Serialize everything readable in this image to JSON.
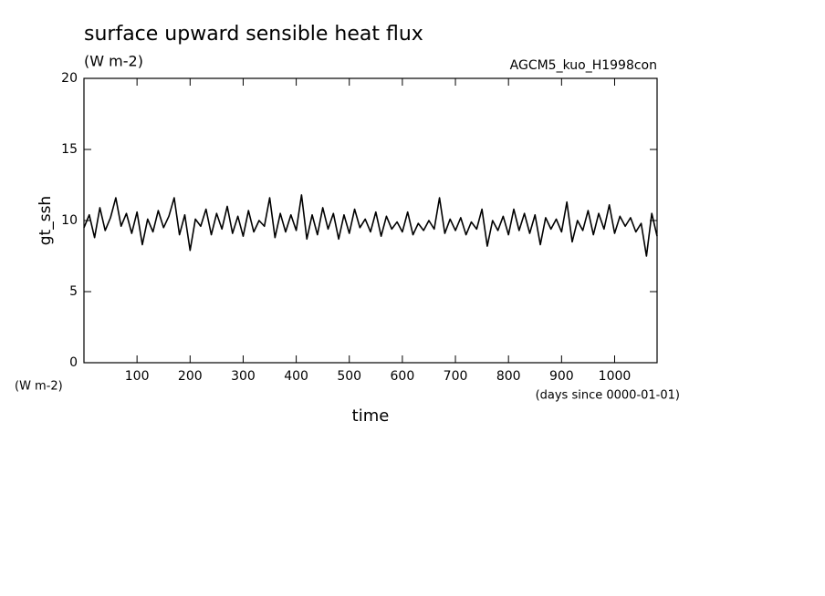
{
  "chart_data": {
    "type": "line",
    "title": "surface upward sensible heat flux",
    "subtitle": "(W m-2)",
    "annotation": "AGCM5_kuo_H1998con",
    "y_label": "gt_ssh",
    "y_unit": "(W m-2)",
    "x_label": "time",
    "x_unit": "(days since 0000-01-01)",
    "color": "#000000",
    "xlim": [
      0,
      1080
    ],
    "ylim": [
      0,
      20
    ],
    "xticks": [
      100,
      200,
      300,
      400,
      500,
      600,
      700,
      800,
      900,
      1000
    ],
    "yticks": [
      0,
      5,
      10,
      15,
      20
    ],
    "x": [
      0,
      10,
      20,
      30,
      40,
      50,
      60,
      70,
      80,
      90,
      100,
      110,
      120,
      130,
      140,
      150,
      160,
      170,
      180,
      190,
      200,
      210,
      220,
      230,
      240,
      250,
      260,
      270,
      280,
      290,
      300,
      310,
      320,
      330,
      340,
      350,
      360,
      370,
      380,
      390,
      400,
      410,
      420,
      430,
      440,
      450,
      460,
      470,
      480,
      490,
      500,
      510,
      520,
      530,
      540,
      550,
      560,
      570,
      580,
      590,
      600,
      610,
      620,
      630,
      640,
      650,
      660,
      670,
      680,
      690,
      700,
      710,
      720,
      730,
      740,
      750,
      760,
      770,
      780,
      790,
      800,
      810,
      820,
      830,
      840,
      850,
      860,
      870,
      880,
      890,
      900,
      910,
      920,
      930,
      940,
      950,
      960,
      970,
      980,
      990,
      1000,
      1010,
      1020,
      1030,
      1040,
      1050,
      1060,
      1070,
      1080
    ],
    "values": [
      9.5,
      10.4,
      8.8,
      10.9,
      9.3,
      10.2,
      11.6,
      9.6,
      10.5,
      9.1,
      10.6,
      8.3,
      10.1,
      9.2,
      10.7,
      9.5,
      10.3,
      11.6,
      9.0,
      10.4,
      7.9,
      10.1,
      9.6,
      10.8,
      9.0,
      10.5,
      9.4,
      11.0,
      9.1,
      10.3,
      8.9,
      10.7,
      9.2,
      10.0,
      9.6,
      11.6,
      8.8,
      10.5,
      9.2,
      10.4,
      9.3,
      11.8,
      8.7,
      10.4,
      9.0,
      10.9,
      9.4,
      10.5,
      8.7,
      10.4,
      9.1,
      10.8,
      9.5,
      10.1,
      9.2,
      10.6,
      8.9,
      10.3,
      9.4,
      9.9,
      9.2,
      10.6,
      9.0,
      9.8,
      9.3,
      10.0,
      9.4,
      11.6,
      9.1,
      10.1,
      9.3,
      10.2,
      9.0,
      9.9,
      9.4,
      10.8,
      8.2,
      10.0,
      9.3,
      10.3,
      9.0,
      10.8,
      9.3,
      10.5,
      9.1,
      10.4,
      8.3,
      10.2,
      9.4,
      10.1,
      9.2,
      11.3,
      8.5,
      10.0,
      9.3,
      10.7,
      9.0,
      10.5,
      9.4,
      11.1,
      9.1,
      10.3,
      9.6,
      10.2,
      9.2,
      9.8,
      7.5,
      10.5,
      8.9
    ]
  }
}
